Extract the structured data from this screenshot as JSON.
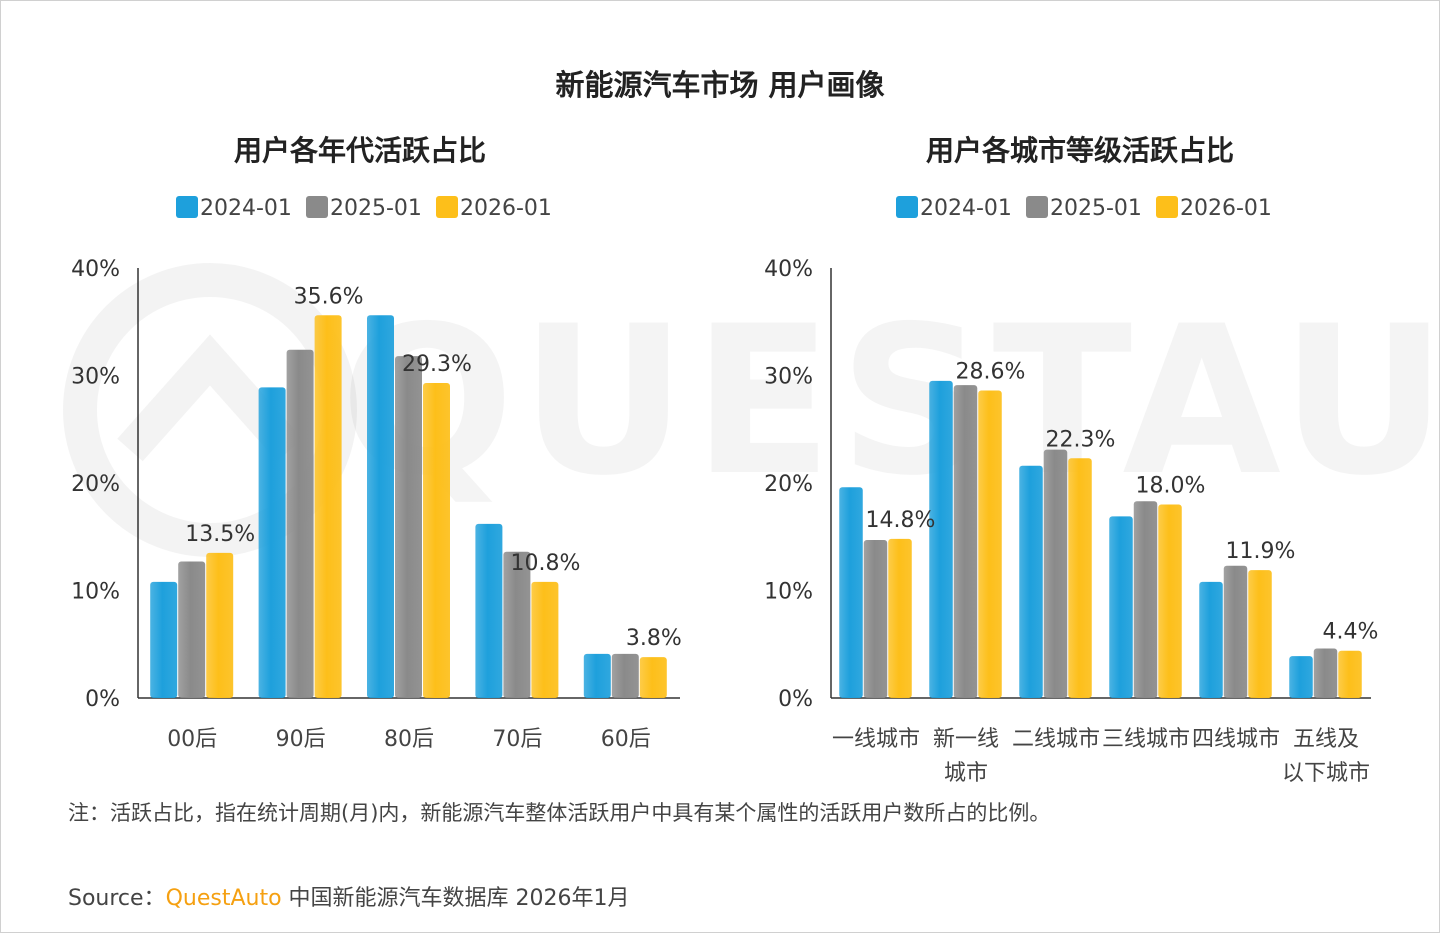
{
  "page_title": "新能源汽车市场 用户画像",
  "note": "注：活跃占比，指在统计周期(月)内，新能源汽车整体活跃用户中具有某个属性的活跃用户数所占的比例。",
  "source": {
    "prefix": "Source：",
    "brand": "QuestAuto",
    "suffix": " 中国新能源汽车数据库 2026年1月"
  },
  "watermark": "QUESTAUTO",
  "colors": {
    "series": [
      "#1ea0dc",
      "#8a8a8a",
      "#fdbf1a"
    ],
    "axis": "#333333"
  },
  "chart_data": [
    {
      "type": "bar",
      "title": "用户各年代活跃占比",
      "categories": [
        "00后",
        "90后",
        "80后",
        "70后",
        "60后"
      ],
      "series": [
        {
          "name": "2024-01",
          "values": [
            10.8,
            28.9,
            35.6,
            16.2,
            4.1
          ]
        },
        {
          "name": "2025-01",
          "values": [
            12.7,
            32.4,
            31.8,
            13.6,
            4.1
          ]
        },
        {
          "name": "2026-01",
          "values": [
            13.5,
            35.6,
            29.3,
            10.8,
            3.8
          ]
        }
      ],
      "data_labels": [
        {
          "category_index": 0,
          "series_index": 2,
          "text": "13.5%"
        },
        {
          "category_index": 1,
          "series_index": 2,
          "text": "35.6%"
        },
        {
          "category_index": 2,
          "series_index": 2,
          "text": "29.3%"
        },
        {
          "category_index": 3,
          "series_index": 2,
          "text": "10.8%"
        },
        {
          "category_index": 4,
          "series_index": 2,
          "text": "3.8%"
        }
      ],
      "yticks": [
        "0%",
        "10%",
        "20%",
        "30%",
        "40%"
      ],
      "ylim": [
        0,
        40
      ],
      "legend_position": "top",
      "grid": false
    },
    {
      "type": "bar",
      "title": "用户各城市等级活跃占比",
      "categories": [
        "一线城市",
        "新一线城市",
        "二线城市",
        "三线城市",
        "四线城市",
        "五线及以下城市"
      ],
      "category_lines": [
        [
          "一线城市"
        ],
        [
          "新一线",
          "城市"
        ],
        [
          "二线城市"
        ],
        [
          "三线城市"
        ],
        [
          "四线城市"
        ],
        [
          "五线及",
          "以下城市"
        ]
      ],
      "series": [
        {
          "name": "2024-01",
          "values": [
            19.6,
            29.5,
            21.6,
            16.9,
            10.8,
            3.9
          ]
        },
        {
          "name": "2025-01",
          "values": [
            14.7,
            29.1,
            23.1,
            18.3,
            12.3,
            4.6
          ]
        },
        {
          "name": "2026-01",
          "values": [
            14.8,
            28.6,
            22.3,
            18.0,
            11.9,
            4.4
          ]
        }
      ],
      "data_labels": [
        {
          "category_index": 0,
          "series_index": 2,
          "text": "14.8%"
        },
        {
          "category_index": 1,
          "series_index": 2,
          "text": "28.6%"
        },
        {
          "category_index": 2,
          "series_index": 2,
          "text": "22.3%"
        },
        {
          "category_index": 3,
          "series_index": 2,
          "text": "18.0%"
        },
        {
          "category_index": 4,
          "series_index": 2,
          "text": "11.9%"
        },
        {
          "category_index": 5,
          "series_index": 2,
          "text": "4.4%"
        }
      ],
      "yticks": [
        "0%",
        "10%",
        "20%",
        "30%",
        "40%"
      ],
      "ylim": [
        0,
        40
      ],
      "legend_position": "top",
      "grid": false
    }
  ]
}
